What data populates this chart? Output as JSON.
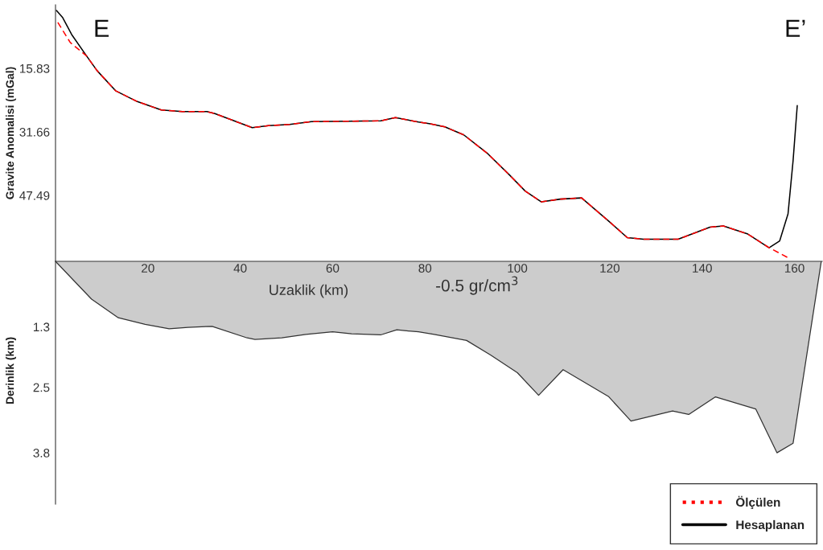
{
  "chart_data": [
    {
      "type": "line",
      "ylabel": "Gravite Anomalisi (mGal)",
      "xlabel": "Uzaklik (km)",
      "annotations": [
        "E",
        "E’"
      ],
      "xlim": [
        0,
        166
      ],
      "xticks": [
        20,
        40,
        60,
        80,
        100,
        120,
        140,
        160
      ],
      "ylim": [
        63.9,
        0
      ],
      "yticks": [
        15.83,
        31.66,
        47.49
      ],
      "legend": "bottom right",
      "grid": false,
      "series": [
        {
          "name": "Ölçülen",
          "color": "#ff0000",
          "line_style": "dashed",
          "x": [
            0.5,
            3.2,
            6.7,
            9.0,
            13.0,
            17.7,
            22.9,
            27.5,
            32.8,
            34.5,
            42.6,
            46.1,
            50.7,
            55.4,
            63.5,
            70.4,
            73.6,
            78.6,
            80.9,
            84.3,
            88.4,
            93.6,
            98.3,
            101.7,
            105.2,
            109.3,
            113.9,
            119.7,
            123.8,
            127.3,
            134.8,
            141.7,
            144.6,
            149.9,
            154.5,
            159.1
          ],
          "values": [
            4.4,
            9.4,
            12.7,
            16.4,
            21.4,
            24.1,
            26.2,
            26.6,
            26.6,
            27.1,
            30.6,
            30.1,
            29.8,
            29.1,
            29.0,
            28.9,
            28.1,
            29.2,
            29.6,
            30.4,
            32.4,
            37.1,
            42.4,
            46.4,
            49.1,
            48.4,
            48.1,
            53.8,
            58.0,
            58.4,
            58.4,
            55.4,
            55.1,
            57.1,
            60.5,
            63.3
          ]
        },
        {
          "name": "Hesaplanan",
          "color": "#000000",
          "line_style": "solid",
          "x": [
            0.2,
            1.5,
            3.5,
            6.7,
            9.0,
            13.0,
            17.7,
            22.9,
            27.5,
            32.8,
            34.5,
            42.6,
            46.1,
            50.7,
            55.4,
            63.5,
            70.4,
            73.6,
            78.6,
            80.9,
            84.3,
            88.4,
            93.6,
            98.3,
            101.7,
            105.2,
            109.3,
            113.9,
            119.7,
            123.8,
            127.3,
            134.8,
            141.7,
            144.6,
            149.9,
            154.5,
            156.8,
            158.6,
            159.7,
            160.6
          ],
          "values": [
            1.4,
            3.1,
            7.4,
            12.7,
            16.4,
            21.4,
            24.1,
            26.2,
            26.6,
            26.6,
            27.1,
            30.6,
            30.1,
            29.8,
            29.1,
            29.0,
            28.9,
            28.1,
            29.2,
            29.6,
            30.4,
            32.4,
            37.1,
            42.4,
            46.4,
            49.1,
            48.4,
            48.1,
            53.8,
            58.0,
            58.4,
            58.4,
            55.4,
            55.1,
            57.1,
            60.5,
            58.8,
            52.1,
            38.8,
            25.1
          ]
        }
      ]
    },
    {
      "type": "area",
      "ylabel": "Derinlik (km)",
      "annotations": [
        "-0.5 gr/cm$^{3}$"
      ],
      "xlim": [
        0,
        166
      ],
      "ylim": [
        4.82,
        0
      ],
      "yticks": [
        1.3,
        2.5,
        3.8
      ],
      "tick_labels": "y",
      "grid": false,
      "series": [
        {
          "color": "#cccccc",
          "x": [
            0,
            7.8,
            13.6,
            19.4,
            24.6,
            28.7,
            33.9,
            41.5,
            43.2,
            49.0,
            54.2,
            60.0,
            64.1,
            70.4,
            73.9,
            78.6,
            82.0,
            89.0,
            94.2,
            100.0,
            104.6,
            109.9,
            119.7,
            124.6,
            133.6,
            137.1,
            142.9,
            151.6,
            156.2,
            159.7,
            165.8
          ],
          "values": [
            0,
            0.75,
            1.12,
            1.25,
            1.34,
            1.31,
            1.29,
            1.52,
            1.55,
            1.52,
            1.45,
            1.4,
            1.44,
            1.46,
            1.36,
            1.4,
            1.45,
            1.57,
            1.86,
            2.21,
            2.66,
            2.15,
            2.68,
            3.17,
            2.97,
            3.04,
            2.69,
            2.93,
            3.8,
            3.61,
            0
          ]
        }
      ]
    }
  ]
}
